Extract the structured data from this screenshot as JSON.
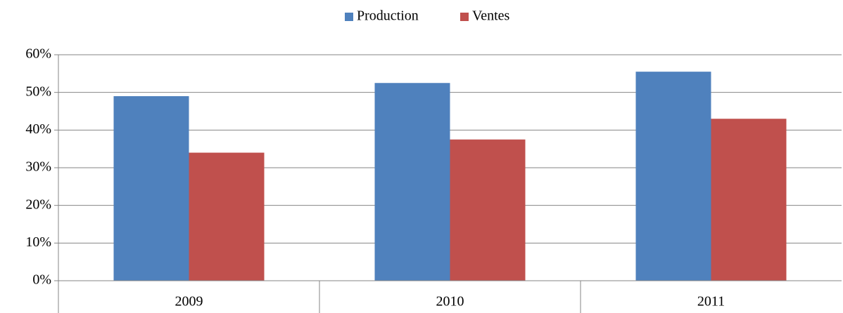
{
  "chart_data": {
    "type": "bar",
    "categories": [
      "2009",
      "2010",
      "2011"
    ],
    "series": [
      {
        "name": "Production",
        "color": "#4f81bd",
        "values": [
          49,
          52.5,
          55.5
        ]
      },
      {
        "name": "Ventes",
        "color": "#c0504d",
        "values": [
          34,
          37.5,
          43
        ]
      }
    ],
    "ylim": [
      0,
      60
    ],
    "yticks": [
      {
        "value": 0,
        "label": "0%"
      },
      {
        "value": 10,
        "label": "10%"
      },
      {
        "value": 20,
        "label": "20%"
      },
      {
        "value": 30,
        "label": "30%"
      },
      {
        "value": 40,
        "label": "40%"
      },
      {
        "value": 50,
        "label": "50%"
      },
      {
        "value": 60,
        "label": "60%"
      }
    ],
    "grid": true,
    "legend": "top"
  }
}
